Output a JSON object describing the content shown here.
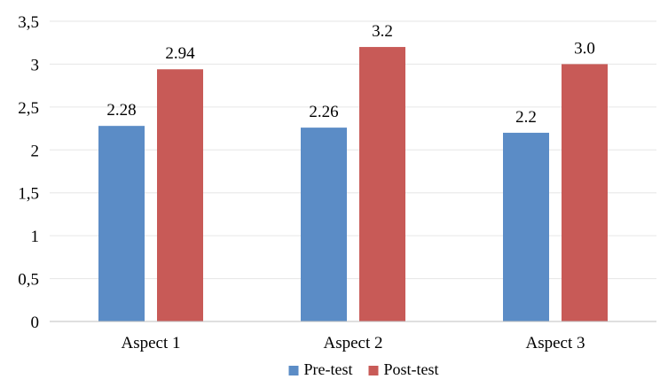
{
  "chart_data": {
    "type": "bar",
    "categories": [
      "Aspect 1",
      "Aspect 2",
      "Aspect 3"
    ],
    "series": [
      {
        "name": "Pre-test",
        "values": [
          2.28,
          2.26,
          2.2
        ],
        "labels": [
          "2.28",
          "2.26",
          "2.2"
        ],
        "color": "#5b8cc6"
      },
      {
        "name": "Post-test",
        "values": [
          2.94,
          3.2,
          3.0
        ],
        "labels": [
          "2.94",
          "3.2",
          "3.0"
        ],
        "color": "#c85a57"
      }
    ],
    "title": "",
    "xlabel": "",
    "ylabel": "",
    "ylim": [
      0,
      3.5
    ],
    "yticks": [
      0,
      0.5,
      1,
      1.5,
      2,
      2.5,
      3,
      3.5
    ],
    "ytick_labels": [
      "0",
      "0,5",
      "1",
      "1,5",
      "2",
      "2,5",
      "3",
      "3,5"
    ],
    "grid": true,
    "legend_position": "bottom"
  }
}
